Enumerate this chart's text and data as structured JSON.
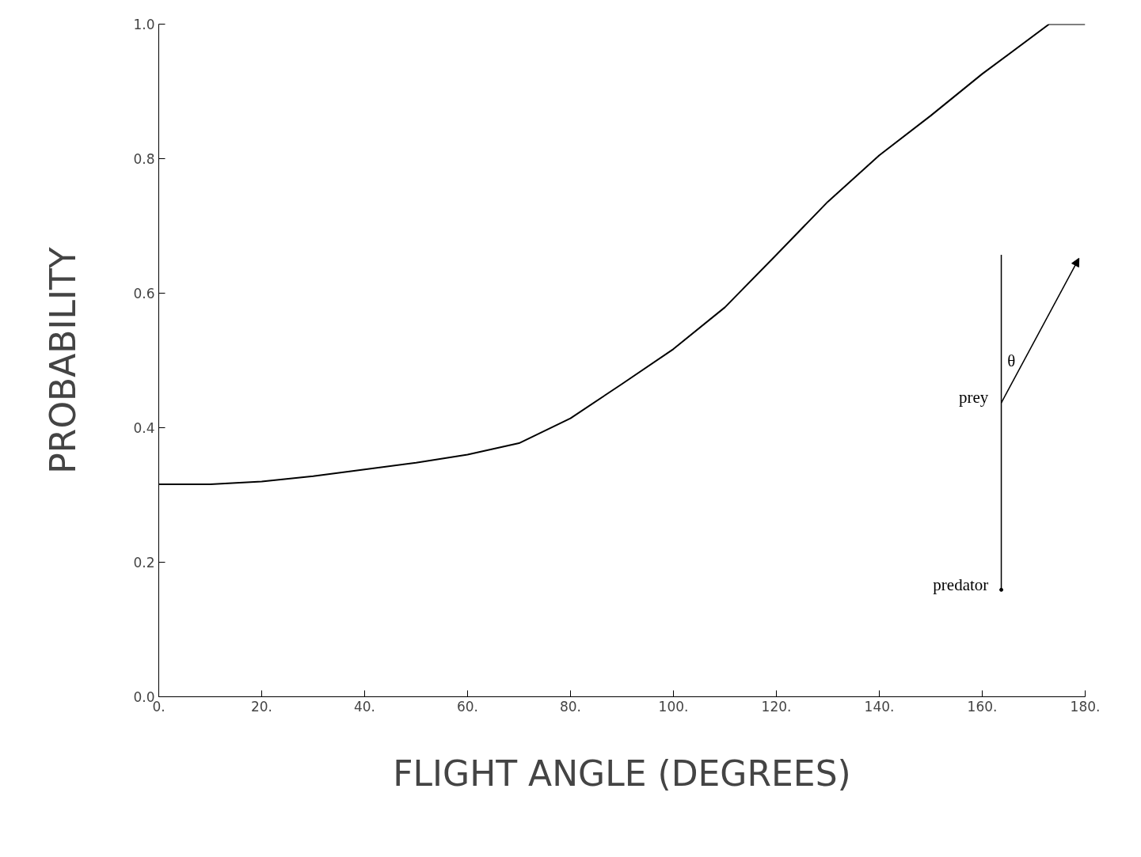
{
  "chart_data": {
    "type": "line",
    "xlabel": "FLIGHT ANGLE (DEGREES)",
    "ylabel": "PROBABILITY",
    "x": [
      0,
      10,
      20,
      30,
      40,
      50,
      60,
      70,
      80,
      90,
      100,
      110,
      120,
      130,
      140,
      150,
      160,
      173,
      180
    ],
    "series": [
      {
        "color": "#000000",
        "values": [
          0.316,
          0.316,
          0.32,
          0.328,
          0.338,
          0.348,
          0.36,
          0.377,
          0.414,
          0.465,
          0.517,
          0.579,
          0.657,
          0.736,
          0.805,
          0.864,
          0.926,
          1.0,
          1.0
        ]
      }
    ],
    "xlim": [
      0,
      180
    ],
    "ylim": [
      0,
      1
    ],
    "xticks": [
      {
        "value": 0,
        "label": "0."
      },
      {
        "value": 20,
        "label": "20."
      },
      {
        "value": 40,
        "label": "40."
      },
      {
        "value": 60,
        "label": "60."
      },
      {
        "value": 80,
        "label": "80."
      },
      {
        "value": 100,
        "label": "100."
      },
      {
        "value": 120,
        "label": "120."
      },
      {
        "value": 140,
        "label": "140."
      },
      {
        "value": 160,
        "label": "160."
      },
      {
        "value": 180,
        "label": "180."
      }
    ],
    "yticks": [
      {
        "value": 0,
        "label": "0.0"
      },
      {
        "value": 0.2,
        "label": "0.2"
      },
      {
        "value": 0.4,
        "label": "0.4"
      },
      {
        "value": 0.6,
        "label": "0.6"
      },
      {
        "value": 0.8,
        "label": "0.8"
      },
      {
        "value": 1.0,
        "label": "1.0"
      }
    ],
    "annotations": [
      "θ",
      "prey",
      "predator"
    ],
    "grid": false,
    "marker": "none",
    "line_style": "solid"
  }
}
